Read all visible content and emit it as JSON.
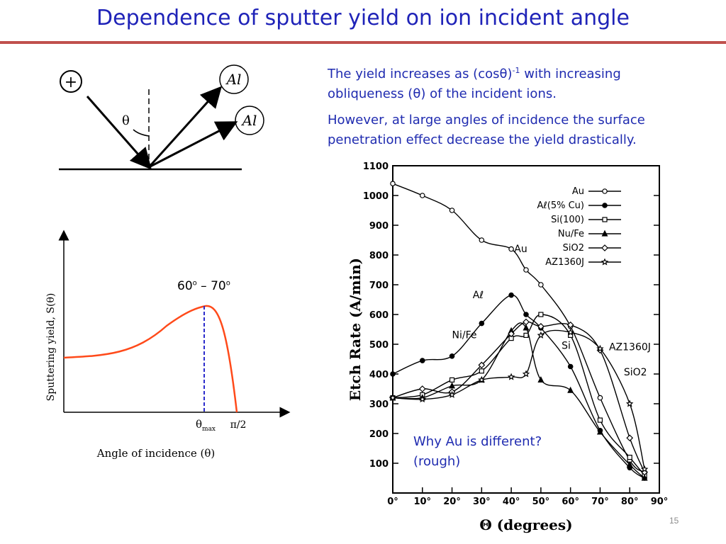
{
  "slide": {
    "title": "Dependence of sputter yield on ion incident angle",
    "page_number": "15"
  },
  "text": {
    "para1_a": "The yield increases as (cos",
    "para1_theta": "θ",
    "para1_b": ")",
    "para1_exp": "-1",
    "para1_c": " with increasing",
    "para1_d": "obliqueness (",
    "para1_theta2": "θ",
    "para1_e": ") of the incident ions.",
    "para2": "However, at large angles of incidence the surface penetration effect decrease the yield drastically.",
    "note_line1": "Why Au is different?",
    "note_line2": "(rough)",
    "range_a": "60",
    "range_sup1": "o",
    "range_b": " – 70",
    "range_sup2": "o"
  },
  "diagram": {
    "ion_symbol": "+",
    "theta": "θ",
    "atom1": "Al",
    "atom2": "Al"
  },
  "yield_plot": {
    "ylabel": "Sputtering yield, S(θ)",
    "xlabel": "Angle of incidence (θ)",
    "tick_thetamax": "θ",
    "tick_thetamax_sub": "max",
    "tick_pi2": "π/2",
    "curve_color": "#ff4a1a",
    "marker_color": "#2b2bcc"
  },
  "chart_data": {
    "type": "line",
    "xlabel": "Θ (degrees)",
    "ylabel": "Etch Rate (A/min)",
    "xlim": [
      0,
      90
    ],
    "ylim": [
      0,
      1100
    ],
    "x_ticks": [
      "0°",
      "10°",
      "20°",
      "30°",
      "40°",
      "50°",
      "60°",
      "70°",
      "80°",
      "90°"
    ],
    "y_ticks": [
      "100",
      "200",
      "300",
      "400",
      "500",
      "600",
      "700",
      "800",
      "900",
      "1000",
      "1100"
    ],
    "legend": [
      {
        "name": "Au",
        "marker": "○"
      },
      {
        "name": "Aℓ(5% Cu)",
        "marker": "●"
      },
      {
        "name": "Si(100)",
        "marker": "□"
      },
      {
        "name": "Nu/Fe",
        "marker": "▲"
      },
      {
        "name": "SiO2",
        "marker": "◇"
      },
      {
        "name": "AZ1360J",
        "marker": "☆"
      }
    ],
    "annotations": [
      "Au",
      "Aℓ",
      "Ni/Fe",
      "Si",
      "AZ1360J",
      "SiO2"
    ],
    "series": [
      {
        "name": "Au",
        "x": [
          0,
          10,
          20,
          30,
          40,
          45,
          50,
          60,
          70,
          80,
          85
        ],
        "y": [
          1040,
          1000,
          950,
          850,
          820,
          750,
          700,
          560,
          320,
          110,
          70
        ]
      },
      {
        "name": "Aℓ(5% Cu)",
        "x": [
          0,
          10,
          20,
          30,
          40,
          45,
          50,
          60,
          70,
          80,
          85
        ],
        "y": [
          400,
          445,
          460,
          570,
          665,
          600,
          555,
          425,
          210,
          85,
          50
        ]
      },
      {
        "name": "Si(100)",
        "x": [
          0,
          10,
          20,
          30,
          40,
          45,
          50,
          60,
          70,
          80,
          85
        ],
        "y": [
          320,
          330,
          380,
          410,
          520,
          530,
          600,
          530,
          245,
          120,
          60
        ]
      },
      {
        "name": "Nu/Fe",
        "x": [
          0,
          10,
          20,
          30,
          40,
          45,
          50,
          60,
          70,
          80,
          85
        ],
        "y": [
          320,
          320,
          360,
          380,
          545,
          555,
          380,
          345,
          205,
          95,
          50
        ]
      },
      {
        "name": "SiO2",
        "x": [
          0,
          10,
          20,
          30,
          40,
          45,
          50,
          60,
          70,
          80,
          85
        ],
        "y": [
          320,
          350,
          340,
          430,
          535,
          575,
          560,
          565,
          480,
          185,
          70
        ]
      },
      {
        "name": "AZ1360J",
        "x": [
          0,
          10,
          20,
          30,
          40,
          45,
          50,
          60,
          70,
          80,
          85
        ],
        "y": [
          320,
          315,
          330,
          380,
          390,
          400,
          530,
          540,
          485,
          300,
          80
        ]
      }
    ]
  }
}
